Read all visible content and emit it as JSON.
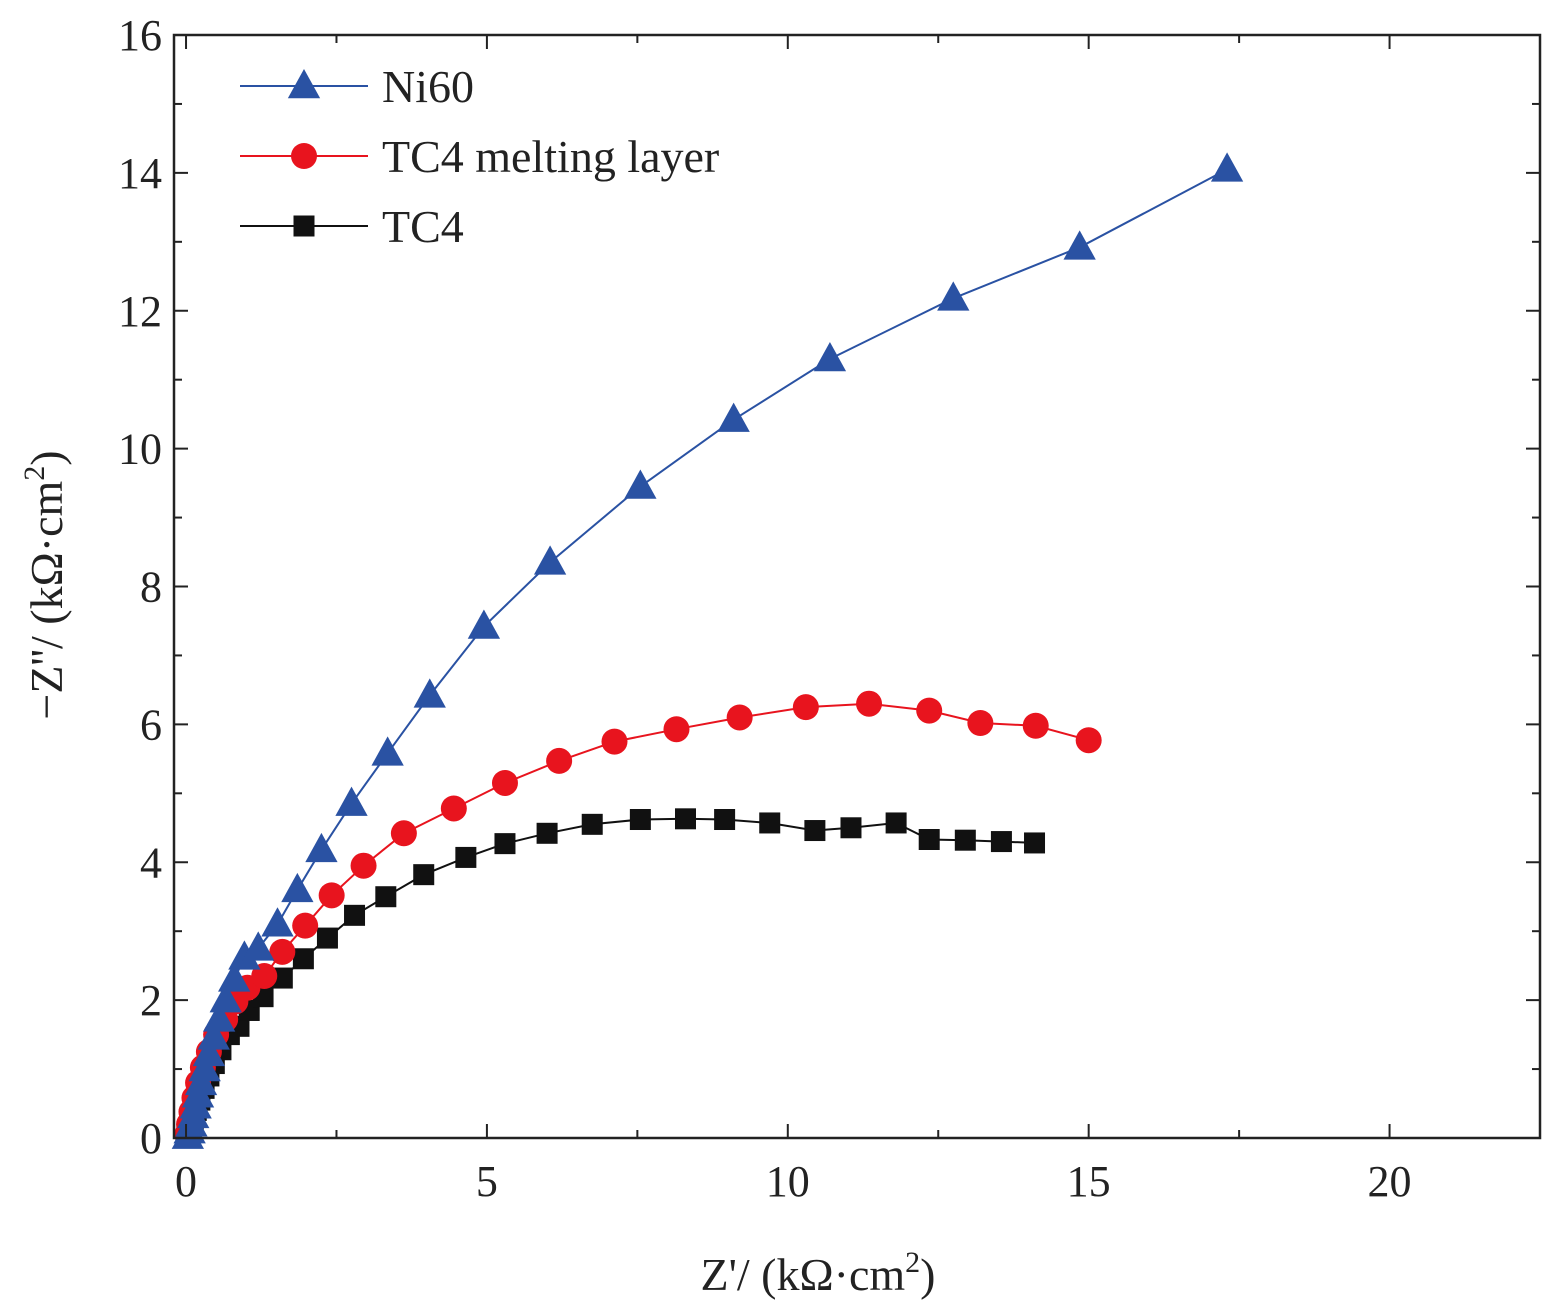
{
  "chart_data": {
    "type": "line",
    "title": "",
    "xlabel": "Z'/ (kΩ·cm",
    "xlabel_sup": "2",
    "xlabel_close": ")",
    "ylabel": "−Z''/ (kΩ·cm",
    "ylabel_sup": "2",
    "ylabel_close": ")",
    "xlim": [
      -0.2,
      22.5
    ],
    "ylim": [
      0,
      16
    ],
    "xticks": [
      0,
      5,
      10,
      15,
      20
    ],
    "xtick_labels": [
      "0",
      "5",
      "10",
      "15",
      "20"
    ],
    "yticks": [
      0,
      2,
      4,
      6,
      8,
      10,
      12,
      14,
      16
    ],
    "ytick_labels": [
      "0",
      "2",
      "4",
      "6",
      "8",
      "10",
      "12",
      "14",
      "16"
    ],
    "grid": false,
    "legend_position": "top-left",
    "series": [
      {
        "name": "Ni60",
        "color": "#2a52a3",
        "marker": "triangle",
        "x": [
          0.03,
          0.06,
          0.09,
          0.12,
          0.16,
          0.2,
          0.25,
          0.31,
          0.38,
          0.46,
          0.55,
          0.66,
          0.8,
          0.97,
          1.2,
          1.52,
          1.85,
          2.25,
          2.75,
          3.35,
          4.05,
          4.95,
          6.05,
          7.55,
          9.1,
          10.7,
          12.75,
          14.85,
          17.3
        ],
        "y": [
          0.02,
          0.1,
          0.2,
          0.32,
          0.46,
          0.62,
          0.8,
          1.0,
          1.22,
          1.46,
          1.72,
          2.0,
          2.3,
          2.62,
          2.75,
          3.1,
          3.6,
          4.18,
          4.85,
          5.58,
          6.42,
          7.42,
          8.35,
          9.45,
          10.42,
          11.3,
          12.18,
          12.92,
          14.05
        ]
      },
      {
        "name": "TC4 melting layer",
        "color": "#e8141e",
        "marker": "circle",
        "x": [
          0.02,
          0.05,
          0.09,
          0.14,
          0.2,
          0.28,
          0.38,
          0.5,
          0.65,
          0.82,
          1.02,
          1.3,
          1.6,
          1.98,
          2.42,
          2.95,
          3.62,
          4.45,
          5.3,
          6.2,
          7.12,
          8.15,
          9.2,
          10.3,
          11.35,
          12.35,
          13.2,
          14.12,
          15.0
        ],
        "y": [
          0.05,
          0.2,
          0.38,
          0.58,
          0.8,
          1.02,
          1.25,
          1.5,
          1.72,
          1.98,
          2.18,
          2.35,
          2.7,
          3.08,
          3.52,
          3.95,
          4.42,
          4.78,
          5.15,
          5.47,
          5.75,
          5.93,
          6.1,
          6.25,
          6.3,
          6.2,
          6.02,
          5.98,
          5.77
        ]
      },
      {
        "name": "TC4",
        "color": "#111111",
        "marker": "square",
        "x": [
          0.04,
          0.08,
          0.12,
          0.17,
          0.23,
          0.3,
          0.38,
          0.47,
          0.58,
          0.72,
          0.88,
          1.05,
          1.28,
          1.6,
          1.95,
          2.35,
          2.8,
          3.32,
          3.95,
          4.65,
          5.3,
          6.0,
          6.75,
          7.55,
          8.3,
          8.95,
          9.7,
          10.45,
          11.05,
          11.8,
          12.35,
          12.95,
          13.55,
          14.1
        ],
        "y": [
          0.05,
          0.14,
          0.26,
          0.4,
          0.55,
          0.72,
          0.9,
          1.08,
          1.28,
          1.5,
          1.62,
          1.85,
          2.05,
          2.32,
          2.6,
          2.9,
          3.23,
          3.5,
          3.82,
          4.07,
          4.27,
          4.42,
          4.55,
          4.62,
          4.63,
          4.62,
          4.57,
          4.46,
          4.5,
          4.57,
          4.33,
          4.32,
          4.3,
          4.28
        ]
      }
    ]
  }
}
